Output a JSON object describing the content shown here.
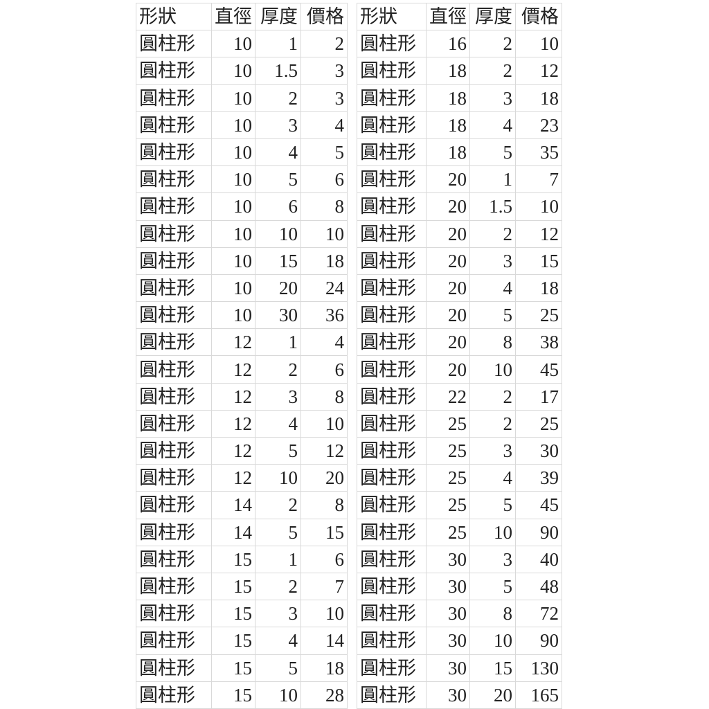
{
  "tables": [
    {
      "headers": [
        "形狀",
        "直徑",
        "厚度",
        "價格"
      ],
      "rows": [
        [
          "圓柱形",
          "10",
          "1",
          "2"
        ],
        [
          "圓柱形",
          "10",
          "1.5",
          "3"
        ],
        [
          "圓柱形",
          "10",
          "2",
          "3"
        ],
        [
          "圓柱形",
          "10",
          "3",
          "4"
        ],
        [
          "圓柱形",
          "10",
          "4",
          "5"
        ],
        [
          "圓柱形",
          "10",
          "5",
          "6"
        ],
        [
          "圓柱形",
          "10",
          "6",
          "8"
        ],
        [
          "圓柱形",
          "10",
          "10",
          "10"
        ],
        [
          "圓柱形",
          "10",
          "15",
          "18"
        ],
        [
          "圓柱形",
          "10",
          "20",
          "24"
        ],
        [
          "圓柱形",
          "10",
          "30",
          "36"
        ],
        [
          "圓柱形",
          "12",
          "1",
          "4"
        ],
        [
          "圓柱形",
          "12",
          "2",
          "6"
        ],
        [
          "圓柱形",
          "12",
          "3",
          "8"
        ],
        [
          "圓柱形",
          "12",
          "4",
          "10"
        ],
        [
          "圓柱形",
          "12",
          "5",
          "12"
        ],
        [
          "圓柱形",
          "12",
          "10",
          "20"
        ],
        [
          "圓柱形",
          "14",
          "2",
          "8"
        ],
        [
          "圓柱形",
          "14",
          "5",
          "15"
        ],
        [
          "圓柱形",
          "15",
          "1",
          "6"
        ],
        [
          "圓柱形",
          "15",
          "2",
          "7"
        ],
        [
          "圓柱形",
          "15",
          "3",
          "10"
        ],
        [
          "圓柱形",
          "15",
          "4",
          "14"
        ],
        [
          "圓柱形",
          "15",
          "5",
          "18"
        ],
        [
          "圓柱形",
          "15",
          "10",
          "28"
        ]
      ]
    },
    {
      "headers": [
        "形狀",
        "直徑",
        "厚度",
        "價格"
      ],
      "rows": [
        [
          "圓柱形",
          "16",
          "2",
          "10"
        ],
        [
          "圓柱形",
          "18",
          "2",
          "12"
        ],
        [
          "圓柱形",
          "18",
          "3",
          "18"
        ],
        [
          "圓柱形",
          "18",
          "4",
          "23"
        ],
        [
          "圓柱形",
          "18",
          "5",
          "35"
        ],
        [
          "圓柱形",
          "20",
          "1",
          "7"
        ],
        [
          "圓柱形",
          "20",
          "1.5",
          "10"
        ],
        [
          "圓柱形",
          "20",
          "2",
          "12"
        ],
        [
          "圓柱形",
          "20",
          "3",
          "15"
        ],
        [
          "圓柱形",
          "20",
          "4",
          "18"
        ],
        [
          "圓柱形",
          "20",
          "5",
          "25"
        ],
        [
          "圓柱形",
          "20",
          "8",
          "38"
        ],
        [
          "圓柱形",
          "20",
          "10",
          "45"
        ],
        [
          "圓柱形",
          "22",
          "2",
          "17"
        ],
        [
          "圓柱形",
          "25",
          "2",
          "25"
        ],
        [
          "圓柱形",
          "25",
          "3",
          "30"
        ],
        [
          "圓柱形",
          "25",
          "4",
          "39"
        ],
        [
          "圓柱形",
          "25",
          "5",
          "45"
        ],
        [
          "圓柱形",
          "25",
          "10",
          "90"
        ],
        [
          "圓柱形",
          "30",
          "3",
          "40"
        ],
        [
          "圓柱形",
          "30",
          "5",
          "48"
        ],
        [
          "圓柱形",
          "30",
          "8",
          "72"
        ],
        [
          "圓柱形",
          "30",
          "10",
          "90"
        ],
        [
          "圓柱形",
          "30",
          "15",
          "130"
        ],
        [
          "圓柱形",
          "30",
          "20",
          "165"
        ]
      ]
    }
  ]
}
